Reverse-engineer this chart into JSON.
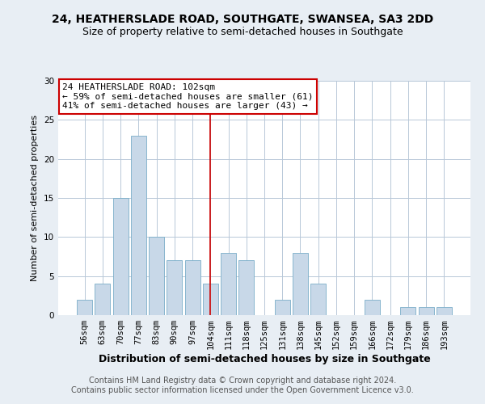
{
  "title": "24, HEATHERSLADE ROAD, SOUTHGATE, SWANSEA, SA3 2DD",
  "subtitle": "Size of property relative to semi-detached houses in Southgate",
  "xlabel": "Distribution of semi-detached houses by size in Southgate",
  "ylabel": "Number of semi-detached properties",
  "footer1": "Contains HM Land Registry data © Crown copyright and database right 2024.",
  "footer2": "Contains public sector information licensed under the Open Government Licence v3.0.",
  "categories": [
    "56sqm",
    "63sqm",
    "70sqm",
    "77sqm",
    "83sqm",
    "90sqm",
    "97sqm",
    "104sqm",
    "111sqm",
    "118sqm",
    "125sqm",
    "131sqm",
    "138sqm",
    "145sqm",
    "152sqm",
    "159sqm",
    "166sqm",
    "172sqm",
    "179sqm",
    "186sqm",
    "193sqm"
  ],
  "values": [
    2,
    4,
    15,
    23,
    10,
    7,
    7,
    4,
    8,
    7,
    0,
    2,
    8,
    4,
    0,
    0,
    2,
    0,
    1,
    1,
    1
  ],
  "bar_color": "#c8d8e8",
  "bar_edge_color": "#7aaec8",
  "vline_x": 7.0,
  "vline_color": "#cc0000",
  "annotation_text": "24 HEATHERSLADE ROAD: 102sqm\n← 59% of semi-detached houses are smaller (61)\n41% of semi-detached houses are larger (43) →",
  "annotation_box_color": "white",
  "annotation_box_edge_color": "#cc0000",
  "ylim": [
    0,
    30
  ],
  "yticks": [
    0,
    5,
    10,
    15,
    20,
    25,
    30
  ],
  "background_color": "#e8eef4",
  "plot_background_color": "#ffffff",
  "grid_color": "#b8c8d8",
  "title_fontsize": 10,
  "subtitle_fontsize": 9,
  "xlabel_fontsize": 9,
  "ylabel_fontsize": 8,
  "tick_fontsize": 7.5,
  "footer_fontsize": 7,
  "ann_fontsize": 8
}
